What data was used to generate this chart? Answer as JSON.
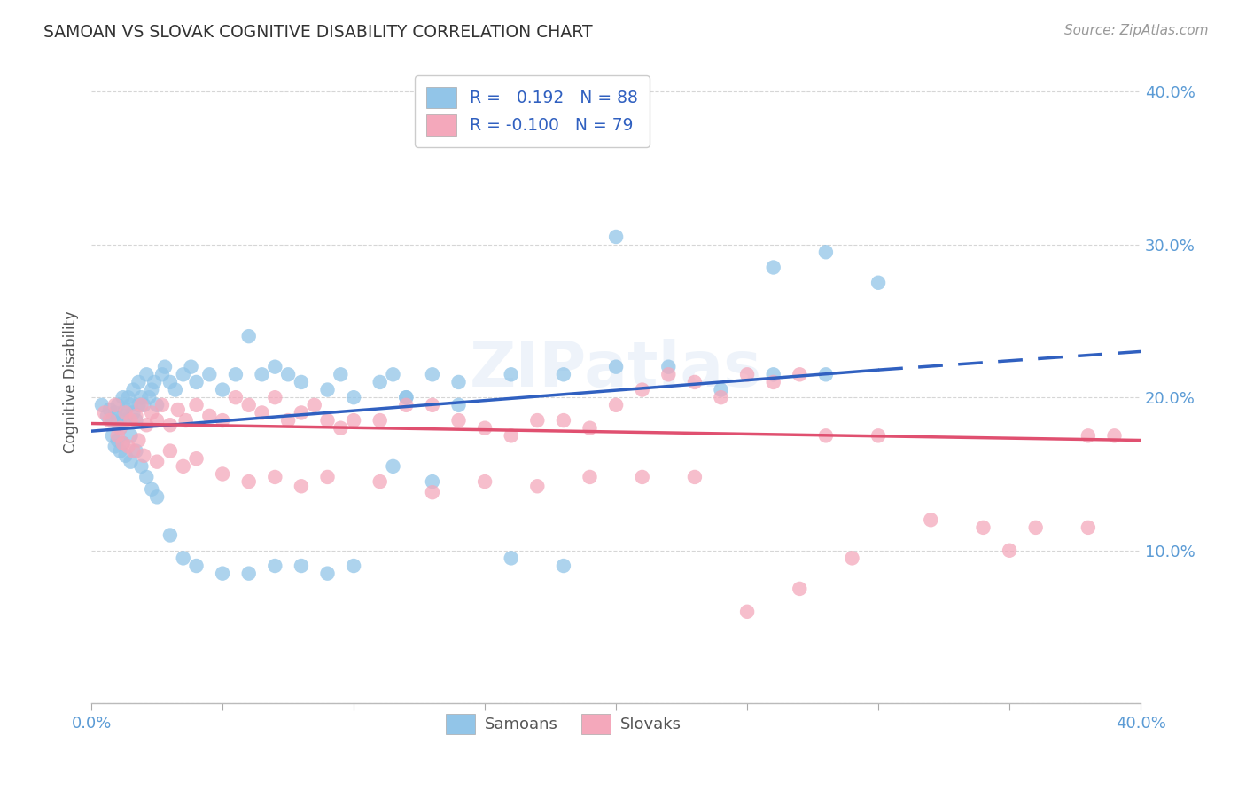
{
  "title": "SAMOAN VS SLOVAK COGNITIVE DISABILITY CORRELATION CHART",
  "source": "Source: ZipAtlas.com",
  "ylabel": "Cognitive Disability",
  "xlim": [
    0.0,
    0.4
  ],
  "ylim": [
    0.0,
    0.42
  ],
  "samoan_color": "#92C5E8",
  "slovak_color": "#F4A8BB",
  "samoan_R": 0.192,
  "samoan_N": 88,
  "slovak_R": -0.1,
  "slovak_N": 79,
  "legend_label_samoan": "Samoans",
  "legend_label_slovak": "Slovaks",
  "watermark": "ZIPatlas",
  "background_color": "#ffffff",
  "grid_color": "#cccccc",
  "title_color": "#333333",
  "axis_color": "#5b9bd5",
  "samoan_line_color": "#3060C0",
  "slovak_line_color": "#E05070",
  "samoan_line_start_x": 0.0,
  "samoan_line_start_y": 0.178,
  "samoan_line_end_x": 0.3,
  "samoan_line_end_y": 0.218,
  "samoan_line_dash_start_x": 0.3,
  "samoan_line_dash_start_y": 0.218,
  "samoan_line_dash_end_x": 0.4,
  "samoan_line_dash_end_y": 0.23,
  "slovak_line_start_x": 0.0,
  "slovak_line_start_y": 0.183,
  "slovak_line_end_x": 0.4,
  "slovak_line_end_y": 0.172,
  "samoan_scatter_x": [
    0.004,
    0.006,
    0.007,
    0.008,
    0.009,
    0.01,
    0.01,
    0.011,
    0.012,
    0.012,
    0.013,
    0.013,
    0.014,
    0.015,
    0.015,
    0.016,
    0.016,
    0.017,
    0.018,
    0.018,
    0.019,
    0.02,
    0.021,
    0.022,
    0.023,
    0.024,
    0.025,
    0.027,
    0.028,
    0.03,
    0.032,
    0.035,
    0.038,
    0.04,
    0.045,
    0.05,
    0.055,
    0.06,
    0.065,
    0.07,
    0.075,
    0.08,
    0.09,
    0.095,
    0.1,
    0.11,
    0.115,
    0.12,
    0.13,
    0.14,
    0.008,
    0.009,
    0.01,
    0.011,
    0.012,
    0.013,
    0.015,
    0.017,
    0.019,
    0.021,
    0.023,
    0.025,
    0.03,
    0.035,
    0.04,
    0.05,
    0.06,
    0.07,
    0.08,
    0.09,
    0.1,
    0.12,
    0.14,
    0.16,
    0.18,
    0.2,
    0.22,
    0.24,
    0.26,
    0.28,
    0.3,
    0.16,
    0.18,
    0.2,
    0.26,
    0.28,
    0.115,
    0.13
  ],
  "samoan_scatter_y": [
    0.195,
    0.188,
    0.192,
    0.185,
    0.19,
    0.183,
    0.195,
    0.18,
    0.188,
    0.2,
    0.192,
    0.185,
    0.2,
    0.195,
    0.175,
    0.19,
    0.205,
    0.185,
    0.195,
    0.21,
    0.2,
    0.195,
    0.215,
    0.2,
    0.205,
    0.21,
    0.195,
    0.215,
    0.22,
    0.21,
    0.205,
    0.215,
    0.22,
    0.21,
    0.215,
    0.205,
    0.215,
    0.24,
    0.215,
    0.22,
    0.215,
    0.21,
    0.205,
    0.215,
    0.2,
    0.21,
    0.215,
    0.2,
    0.215,
    0.21,
    0.175,
    0.168,
    0.172,
    0.165,
    0.17,
    0.162,
    0.158,
    0.165,
    0.155,
    0.148,
    0.14,
    0.135,
    0.11,
    0.095,
    0.09,
    0.085,
    0.085,
    0.09,
    0.09,
    0.085,
    0.09,
    0.2,
    0.195,
    0.215,
    0.215,
    0.22,
    0.22,
    0.205,
    0.215,
    0.295,
    0.275,
    0.095,
    0.09,
    0.305,
    0.285,
    0.215,
    0.155,
    0.145
  ],
  "slovak_scatter_x": [
    0.005,
    0.007,
    0.009,
    0.011,
    0.013,
    0.015,
    0.017,
    0.019,
    0.021,
    0.023,
    0.025,
    0.027,
    0.03,
    0.033,
    0.036,
    0.04,
    0.045,
    0.05,
    0.055,
    0.06,
    0.065,
    0.07,
    0.075,
    0.08,
    0.085,
    0.09,
    0.095,
    0.1,
    0.11,
    0.12,
    0.13,
    0.14,
    0.15,
    0.16,
    0.17,
    0.18,
    0.19,
    0.2,
    0.21,
    0.22,
    0.23,
    0.24,
    0.25,
    0.26,
    0.27,
    0.01,
    0.012,
    0.014,
    0.016,
    0.018,
    0.02,
    0.025,
    0.03,
    0.035,
    0.04,
    0.05,
    0.06,
    0.07,
    0.08,
    0.09,
    0.11,
    0.13,
    0.15,
    0.17,
    0.19,
    0.21,
    0.23,
    0.28,
    0.3,
    0.34,
    0.36,
    0.38,
    0.39,
    0.25,
    0.27,
    0.29,
    0.32,
    0.35,
    0.38
  ],
  "slovak_scatter_y": [
    0.19,
    0.185,
    0.195,
    0.18,
    0.19,
    0.185,
    0.188,
    0.195,
    0.182,
    0.19,
    0.185,
    0.195,
    0.182,
    0.192,
    0.185,
    0.195,
    0.188,
    0.185,
    0.2,
    0.195,
    0.19,
    0.2,
    0.185,
    0.19,
    0.195,
    0.185,
    0.18,
    0.185,
    0.185,
    0.195,
    0.195,
    0.185,
    0.18,
    0.175,
    0.185,
    0.185,
    0.18,
    0.195,
    0.205,
    0.215,
    0.21,
    0.2,
    0.215,
    0.21,
    0.215,
    0.175,
    0.17,
    0.168,
    0.165,
    0.172,
    0.162,
    0.158,
    0.165,
    0.155,
    0.16,
    0.15,
    0.145,
    0.148,
    0.142,
    0.148,
    0.145,
    0.138,
    0.145,
    0.142,
    0.148,
    0.148,
    0.148,
    0.175,
    0.175,
    0.115,
    0.115,
    0.175,
    0.175,
    0.06,
    0.075,
    0.095,
    0.12,
    0.1,
    0.115
  ]
}
